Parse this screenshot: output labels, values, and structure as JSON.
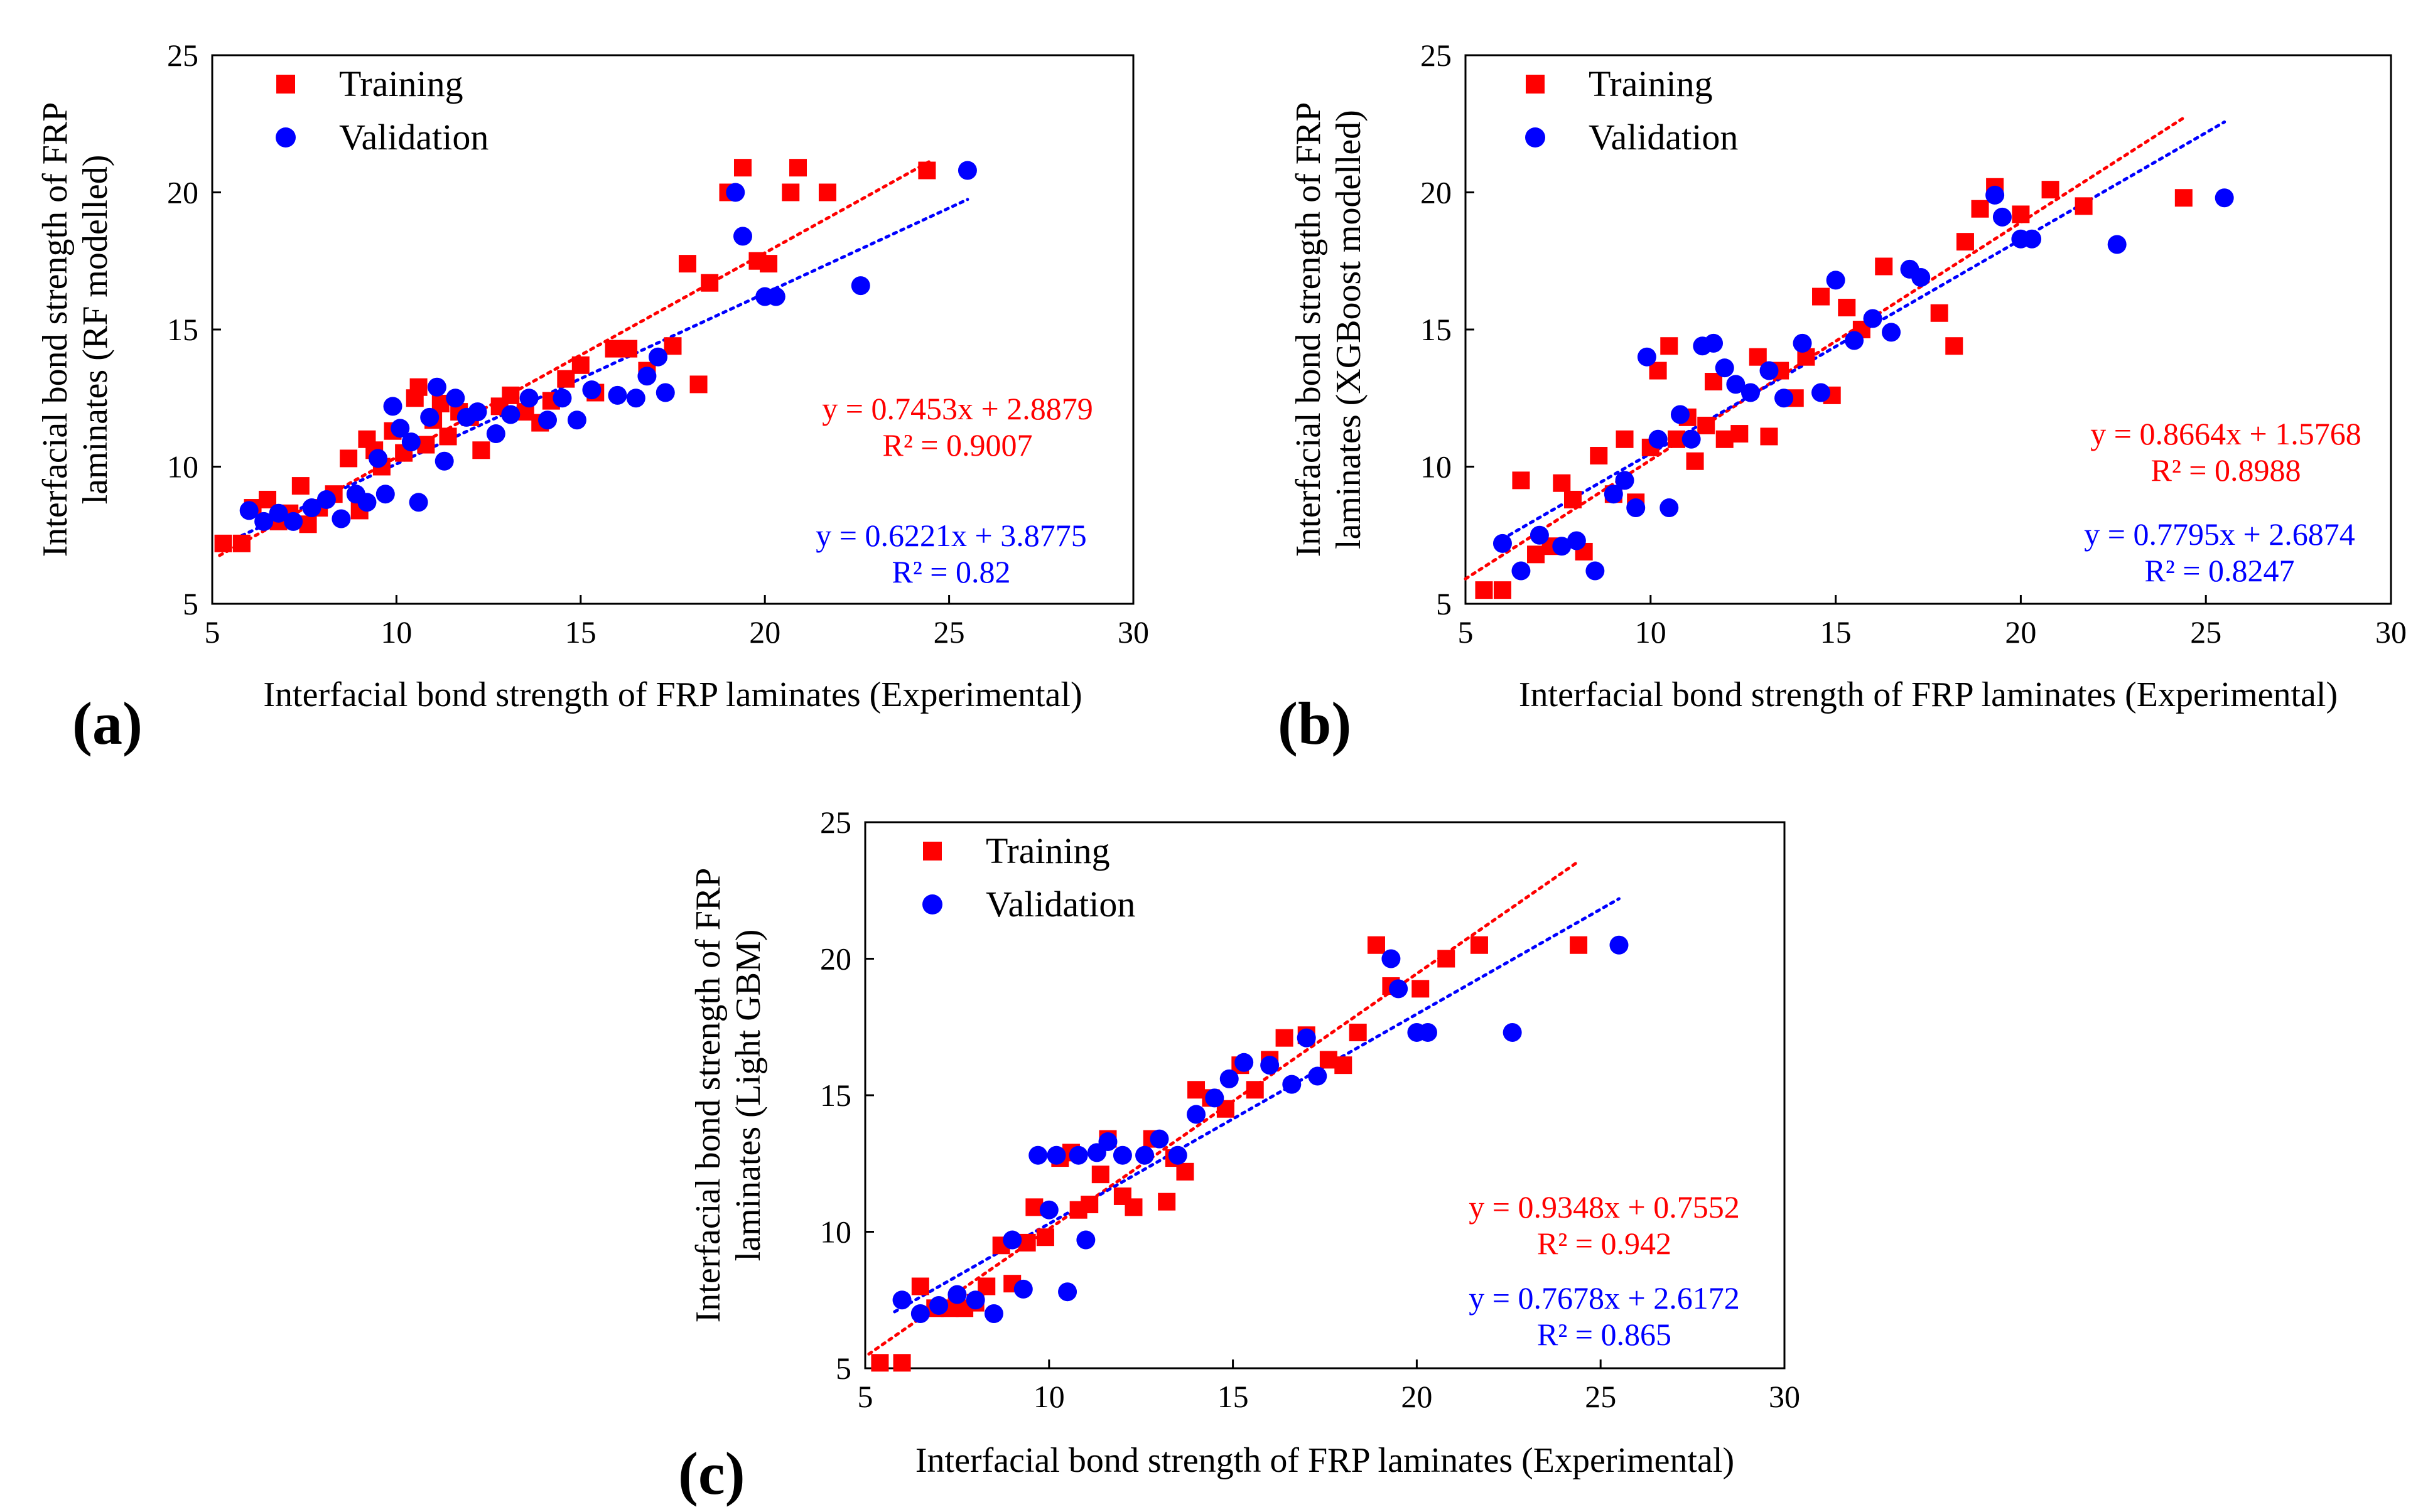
{
  "figure": {
    "panel_labels": [
      "(a)",
      "(b)",
      "(c)"
    ],
    "colors": {
      "training": "#ff0000",
      "validation": "#0000ff",
      "axis": "#000000"
    }
  },
  "chart_data": [
    {
      "type": "scatter",
      "panel": "(a)",
      "xlabel": "Interfacial bond strength of FRP laminates (Experimental)",
      "ylabel_lines": [
        "Interfacial bond strength of FRP",
        "laminates (RF modelled)"
      ],
      "xlim": [
        5,
        30
      ],
      "ylim": [
        5,
        25
      ],
      "xticks": [
        5,
        10,
        15,
        20,
        25,
        30
      ],
      "yticks": [
        5,
        10,
        15,
        20,
        25
      ],
      "legend": [
        "Training",
        "Validation"
      ],
      "series": [
        {
          "name": "Training",
          "marker": "square",
          "color": "#ff0000",
          "x": [
            5.3,
            5.8,
            6.1,
            6.5,
            6.8,
            7.1,
            7.4,
            7.6,
            7.9,
            8.3,
            8.7,
            9.0,
            9.2,
            9.4,
            9.6,
            9.9,
            10.2,
            10.5,
            10.6,
            10.8,
            11.0,
            11.2,
            11.4,
            11.7,
            12.0,
            12.3,
            12.8,
            13.1,
            13.5,
            13.9,
            14.2,
            14.6,
            15.0,
            15.4,
            15.9,
            16.3,
            16.8,
            17.5,
            17.9,
            18.2,
            18.5,
            19.0,
            19.4,
            19.8,
            20.1,
            20.7,
            20.9,
            21.7,
            24.4
          ],
          "y": [
            7.2,
            7.2,
            8.5,
            8.8,
            8.0,
            8.3,
            9.3,
            7.9,
            8.5,
            9.0,
            10.3,
            8.4,
            11.0,
            10.6,
            10.0,
            11.3,
            10.5,
            12.5,
            12.9,
            10.8,
            11.7,
            12.3,
            11.1,
            12.0,
            11.8,
            10.6,
            12.2,
            12.6,
            12.0,
            11.6,
            12.4,
            13.2,
            13.7,
            12.7,
            14.3,
            14.3,
            13.5,
            14.4,
            17.4,
            13.0,
            16.7,
            20.0,
            20.9,
            17.5,
            17.4,
            20.0,
            20.9,
            20.0,
            20.8
          ]
        },
        {
          "name": "Validation",
          "marker": "circle",
          "color": "#0000ff",
          "x": [
            6.0,
            6.4,
            6.8,
            7.2,
            7.7,
            8.1,
            8.5,
            8.9,
            9.2,
            9.5,
            9.7,
            9.9,
            10.1,
            10.4,
            10.6,
            10.9,
            11.1,
            11.3,
            11.6,
            11.9,
            12.2,
            12.7,
            13.1,
            13.6,
            14.1,
            14.5,
            14.9,
            15.3,
            16.0,
            16.5,
            16.8,
            17.1,
            17.3,
            19.2,
            19.4,
            20.0,
            20.3,
            22.6,
            25.5
          ],
          "y": [
            8.4,
            8.0,
            8.3,
            8.0,
            8.5,
            8.8,
            8.1,
            9.0,
            8.7,
            10.3,
            9.0,
            12.2,
            11.4,
            10.9,
            8.7,
            11.8,
            12.9,
            10.2,
            12.5,
            11.8,
            12.0,
            11.2,
            11.9,
            12.5,
            11.7,
            12.5,
            11.7,
            12.8,
            12.6,
            12.5,
            13.3,
            14.0,
            12.7,
            20.0,
            18.4,
            16.2,
            16.2,
            16.6,
            20.8
          ]
        }
      ],
      "trendlines": [
        {
          "series": "Training",
          "equation": "y = 0.7453x + 2.8879",
          "r2": "R² = 0.9007",
          "slope": 0.7453,
          "intercept": 2.8879,
          "x_range": [
            5.2,
            24.5
          ]
        },
        {
          "series": "Validation",
          "equation": "y = 0.6221x + 3.8775",
          "r2": "R² = 0.82",
          "slope": 0.6221,
          "intercept": 3.8775,
          "x_range": [
            5.8,
            25.5
          ]
        }
      ]
    },
    {
      "type": "scatter",
      "panel": "(b)",
      "xlabel": "Interfacial bond strength of FRP laminates (Experimental)",
      "ylabel_lines": [
        "Interfacial bond strength of FRP",
        "laminates (XGBoost modelled)"
      ],
      "xlim": [
        5,
        30
      ],
      "ylim": [
        5,
        25
      ],
      "xticks": [
        5,
        10,
        15,
        20,
        25,
        30
      ],
      "yticks": [
        5,
        10,
        15,
        20,
        25
      ],
      "legend": [
        "Training",
        "Validation"
      ],
      "series": [
        {
          "name": "Training",
          "marker": "square",
          "color": "#ff0000",
          "x": [
            5.5,
            6.0,
            6.5,
            6.9,
            7.3,
            7.6,
            7.9,
            8.2,
            8.6,
            9.0,
            9.3,
            9.6,
            10.0,
            10.2,
            10.5,
            10.7,
            11.0,
            11.2,
            11.5,
            11.7,
            12.0,
            12.4,
            12.9,
            13.2,
            13.5,
            13.9,
            14.2,
            14.6,
            14.9,
            15.3,
            15.7,
            16.3,
            17.8,
            18.2,
            18.5,
            18.9,
            19.3,
            20.0,
            20.8,
            21.7,
            24.4
          ],
          "y": [
            5.5,
            5.5,
            9.5,
            6.8,
            7.1,
            9.4,
            8.8,
            6.9,
            10.4,
            9.0,
            11.0,
            8.7,
            10.7,
            13.5,
            14.4,
            11.0,
            11.8,
            10.2,
            11.5,
            13.1,
            11.0,
            11.2,
            14.0,
            11.1,
            13.5,
            12.5,
            14.0,
            16.2,
            12.6,
            15.8,
            15.0,
            17.3,
            15.6,
            14.4,
            18.2,
            19.4,
            20.2,
            19.2,
            20.1,
            19.5,
            19.8
          ]
        },
        {
          "name": "Validation",
          "marker": "circle",
          "color": "#0000ff",
          "x": [
            6.0,
            6.5,
            7.0,
            7.6,
            8.0,
            8.5,
            9.0,
            9.3,
            9.6,
            9.9,
            10.2,
            10.5,
            10.8,
            11.1,
            11.4,
            11.7,
            12.0,
            12.3,
            12.7,
            13.2,
            13.6,
            14.1,
            14.6,
            15.0,
            15.5,
            16.0,
            16.5,
            17.0,
            17.3,
            19.3,
            19.5,
            20.0,
            20.3,
            22.6,
            25.5
          ],
          "y": [
            7.2,
            6.2,
            7.5,
            7.1,
            7.3,
            6.2,
            9.0,
            9.5,
            8.5,
            14.0,
            11.0,
            8.5,
            11.9,
            11.0,
            14.4,
            14.5,
            13.6,
            13.0,
            12.7,
            13.5,
            12.5,
            14.5,
            12.7,
            16.8,
            14.6,
            15.4,
            14.9,
            17.2,
            16.9,
            19.9,
            19.1,
            18.3,
            18.3,
            18.1,
            19.8
          ]
        }
      ],
      "trendlines": [
        {
          "series": "Training",
          "equation": "y = 0.8664x + 1.5768",
          "r2": "R² = 0.8988",
          "slope": 0.8664,
          "intercept": 1.5768,
          "x_range": [
            5.0,
            24.4
          ]
        },
        {
          "series": "Validation",
          "equation": "y = 0.7795x + 2.6874",
          "r2": "R² = 0.8247",
          "slope": 0.7795,
          "intercept": 2.6874,
          "x_range": [
            5.8,
            25.5
          ]
        }
      ]
    },
    {
      "type": "scatter",
      "panel": "(c)",
      "xlabel": "Interfacial bond strength of FRP laminates (Experimental)",
      "ylabel_lines": [
        "Interfacial bond strength of FRP",
        "laminates (Light GBM)"
      ],
      "xlim": [
        5,
        30
      ],
      "ylim": [
        5,
        25
      ],
      "xticks": [
        5,
        10,
        15,
        20,
        25,
        30
      ],
      "yticks": [
        5,
        10,
        15,
        20,
        25
      ],
      "legend": [
        "Training",
        "Validation"
      ],
      "series": [
        {
          "name": "Training",
          "marker": "square",
          "color": "#ff0000",
          "x": [
            5.4,
            6.0,
            6.5,
            6.9,
            7.3,
            7.7,
            8.0,
            8.3,
            8.7,
            9.0,
            9.4,
            9.6,
            9.9,
            10.3,
            10.6,
            10.8,
            11.1,
            11.4,
            11.6,
            12.0,
            12.3,
            12.8,
            13.2,
            13.4,
            13.7,
            14.0,
            14.4,
            14.8,
            15.2,
            15.6,
            16.0,
            16.4,
            17.0,
            17.6,
            18.0,
            18.4,
            18.9,
            19.3,
            20.1,
            20.8,
            21.7,
            24.4
          ],
          "y": [
            5.2,
            5.2,
            8.0,
            7.2,
            7.2,
            7.2,
            7.4,
            8.0,
            9.5,
            8.1,
            9.6,
            10.9,
            9.8,
            12.7,
            12.9,
            10.8,
            11.0,
            12.1,
            13.4,
            11.3,
            10.9,
            13.4,
            11.1,
            12.7,
            12.2,
            15.2,
            14.9,
            14.5,
            16.1,
            15.2,
            16.3,
            17.1,
            17.2,
            16.3,
            16.1,
            17.3,
            20.5,
            19.0,
            18.9,
            20.0,
            20.5,
            20.5
          ]
        },
        {
          "name": "Validation",
          "marker": "circle",
          "color": "#0000ff",
          "x": [
            6.0,
            6.5,
            7.0,
            7.5,
            8.0,
            8.5,
            9.0,
            9.3,
            9.7,
            10.0,
            10.2,
            10.5,
            10.8,
            11.0,
            11.3,
            11.6,
            12.0,
            12.6,
            13.0,
            13.5,
            14.0,
            14.5,
            14.9,
            15.3,
            16.0,
            16.6,
            17.0,
            17.3,
            19.3,
            19.5,
            20.0,
            20.3,
            22.6,
            25.5
          ],
          "y": [
            7.5,
            7.0,
            7.3,
            7.7,
            7.5,
            7.0,
            9.7,
            7.9,
            12.8,
            10.8,
            12.8,
            7.8,
            12.8,
            9.7,
            12.9,
            13.3,
            12.8,
            12.8,
            13.4,
            12.8,
            14.3,
            14.9,
            15.6,
            16.2,
            16.1,
            15.4,
            17.1,
            15.7,
            20.0,
            18.9,
            17.3,
            17.3,
            17.3,
            20.5
          ]
        }
      ],
      "trendlines": [
        {
          "series": "Training",
          "equation": "y = 0.9348x + 0.7552",
          "r2": "R² = 0.942",
          "slope": 0.9348,
          "intercept": 0.7552,
          "x_range": [
            5.1,
            24.4
          ]
        },
        {
          "series": "Validation",
          "equation": "y = 0.7678x + 2.6172",
          "r2": "R² = 0.865",
          "slope": 0.7678,
          "intercept": 2.6172,
          "x_range": [
            5.8,
            25.5
          ]
        }
      ]
    }
  ]
}
